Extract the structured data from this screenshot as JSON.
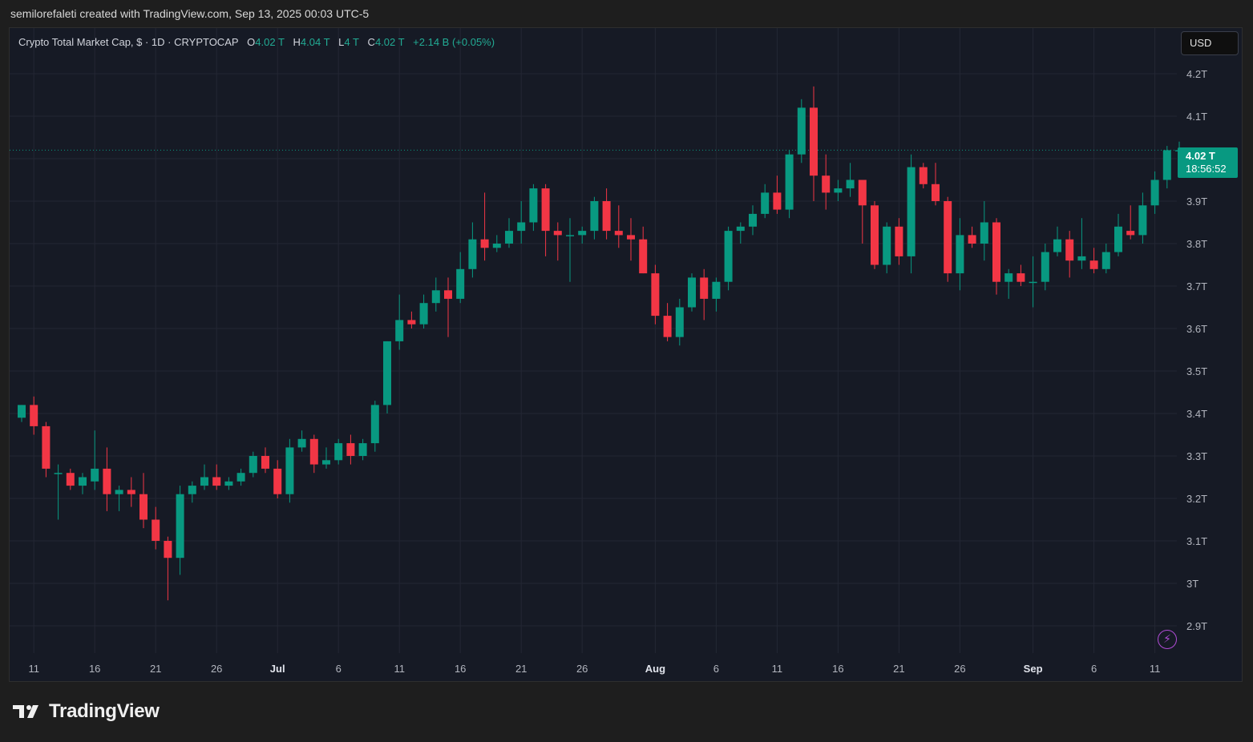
{
  "header": {
    "text": "semilorefaleti created with TradingView.com, Sep 13, 2025 00:03 UTC-5"
  },
  "legend": {
    "symbol": "Crypto Total Market Cap, $ · 1D · CRYPTOCAP",
    "o_label": "O",
    "o_value": "4.02 T",
    "h_label": "H",
    "h_value": "4.04 T",
    "l_label": "L",
    "l_value": "4 T",
    "c_label": "C",
    "c_value": "4.02 T",
    "change": "+2.14 B (+0.05%)"
  },
  "currency_button": {
    "label": "USD"
  },
  "price_tag": {
    "price": "4.02 T",
    "countdown": "18:56:52"
  },
  "footer": {
    "brand": "TradingView"
  },
  "icons": {
    "replay": "lightning-icon",
    "logo": "tradingview-logo-icon"
  },
  "colors": {
    "up": "#089981",
    "down": "#f23645",
    "background": "#161a25",
    "grid": "#232734",
    "axis_text": "#b2b5be"
  },
  "chart_data": {
    "type": "candlestick",
    "unit": "T",
    "ylim": [
      2.85,
      4.23
    ],
    "y_ticks": [
      {
        "v": 2.9,
        "label": "2.9T"
      },
      {
        "v": 3.0,
        "label": "3T"
      },
      {
        "v": 3.1,
        "label": "3.1T"
      },
      {
        "v": 3.2,
        "label": "3.2T"
      },
      {
        "v": 3.3,
        "label": "3.3T"
      },
      {
        "v": 3.4,
        "label": "3.4T"
      },
      {
        "v": 3.5,
        "label": "3.5T"
      },
      {
        "v": 3.6,
        "label": "3.6T"
      },
      {
        "v": 3.7,
        "label": "3.7T"
      },
      {
        "v": 3.8,
        "label": "3.8T"
      },
      {
        "v": 3.9,
        "label": "3.9T"
      },
      {
        "v": 4.0,
        "label": ""
      },
      {
        "v": 4.1,
        "label": "4.1T"
      },
      {
        "v": 4.2,
        "label": "4.2T"
      }
    ],
    "x_ticks": [
      {
        "i": 1,
        "label": "11",
        "bold": false
      },
      {
        "i": 6,
        "label": "16",
        "bold": false
      },
      {
        "i": 11,
        "label": "21",
        "bold": false
      },
      {
        "i": 16,
        "label": "26",
        "bold": false
      },
      {
        "i": 21,
        "label": "Jul",
        "bold": true
      },
      {
        "i": 26,
        "label": "6",
        "bold": false
      },
      {
        "i": 31,
        "label": "11",
        "bold": false
      },
      {
        "i": 36,
        "label": "16",
        "bold": false
      },
      {
        "i": 41,
        "label": "21",
        "bold": false
      },
      {
        "i": 46,
        "label": "26",
        "bold": false
      },
      {
        "i": 52,
        "label": "Aug",
        "bold": true
      },
      {
        "i": 57,
        "label": "6",
        "bold": false
      },
      {
        "i": 62,
        "label": "11",
        "bold": false
      },
      {
        "i": 67,
        "label": "16",
        "bold": false
      },
      {
        "i": 72,
        "label": "21",
        "bold": false
      },
      {
        "i": 77,
        "label": "26",
        "bold": false
      },
      {
        "i": 83,
        "label": "Sep",
        "bold": true
      },
      {
        "i": 88,
        "label": "6",
        "bold": false
      },
      {
        "i": 93,
        "label": "11",
        "bold": false
      }
    ],
    "last_price": 4.02,
    "candles": [
      [
        3.39,
        3.42,
        3.38,
        3.42
      ],
      [
        3.42,
        3.44,
        3.35,
        3.37
      ],
      [
        3.37,
        3.38,
        3.25,
        3.27
      ],
      [
        3.26,
        3.28,
        3.15,
        3.26
      ],
      [
        3.26,
        3.27,
        3.22,
        3.23
      ],
      [
        3.23,
        3.26,
        3.21,
        3.25
      ],
      [
        3.24,
        3.36,
        3.22,
        3.27
      ],
      [
        3.27,
        3.32,
        3.17,
        3.21
      ],
      [
        3.21,
        3.23,
        3.17,
        3.22
      ],
      [
        3.22,
        3.25,
        3.18,
        3.21
      ],
      [
        3.21,
        3.26,
        3.13,
        3.15
      ],
      [
        3.15,
        3.18,
        3.08,
        3.1
      ],
      [
        3.1,
        3.11,
        2.96,
        3.06
      ],
      [
        3.06,
        3.23,
        3.02,
        3.21
      ],
      [
        3.21,
        3.24,
        3.19,
        3.23
      ],
      [
        3.23,
        3.28,
        3.22,
        3.25
      ],
      [
        3.25,
        3.28,
        3.22,
        3.23
      ],
      [
        3.23,
        3.25,
        3.22,
        3.24
      ],
      [
        3.24,
        3.27,
        3.23,
        3.26
      ],
      [
        3.26,
        3.31,
        3.25,
        3.3
      ],
      [
        3.3,
        3.32,
        3.26,
        3.27
      ],
      [
        3.27,
        3.29,
        3.2,
        3.21
      ],
      [
        3.21,
        3.34,
        3.19,
        3.32
      ],
      [
        3.32,
        3.36,
        3.31,
        3.34
      ],
      [
        3.34,
        3.35,
        3.26,
        3.28
      ],
      [
        3.28,
        3.32,
        3.27,
        3.29
      ],
      [
        3.29,
        3.34,
        3.28,
        3.33
      ],
      [
        3.33,
        3.35,
        3.28,
        3.3
      ],
      [
        3.3,
        3.34,
        3.29,
        3.33
      ],
      [
        3.33,
        3.43,
        3.31,
        3.42
      ],
      [
        3.42,
        3.57,
        3.4,
        3.57
      ],
      [
        3.57,
        3.68,
        3.55,
        3.62
      ],
      [
        3.62,
        3.64,
        3.6,
        3.61
      ],
      [
        3.61,
        3.68,
        3.6,
        3.66
      ],
      [
        3.66,
        3.72,
        3.64,
        3.69
      ],
      [
        3.69,
        3.72,
        3.58,
        3.67
      ],
      [
        3.67,
        3.78,
        3.66,
        3.74
      ],
      [
        3.74,
        3.85,
        3.72,
        3.81
      ],
      [
        3.81,
        3.92,
        3.76,
        3.79
      ],
      [
        3.79,
        3.82,
        3.78,
        3.8
      ],
      [
        3.8,
        3.86,
        3.79,
        3.83
      ],
      [
        3.83,
        3.9,
        3.8,
        3.85
      ],
      [
        3.85,
        3.94,
        3.83,
        3.93
      ],
      [
        3.93,
        3.94,
        3.77,
        3.83
      ],
      [
        3.83,
        3.85,
        3.76,
        3.82
      ],
      [
        3.82,
        3.86,
        3.71,
        3.82
      ],
      [
        3.82,
        3.84,
        3.8,
        3.83
      ],
      [
        3.83,
        3.91,
        3.81,
        3.9
      ],
      [
        3.9,
        3.93,
        3.81,
        3.83
      ],
      [
        3.83,
        3.89,
        3.79,
        3.82
      ],
      [
        3.82,
        3.86,
        3.76,
        3.81
      ],
      [
        3.81,
        3.84,
        3.73,
        3.73
      ],
      [
        3.73,
        3.75,
        3.61,
        3.63
      ],
      [
        3.63,
        3.66,
        3.57,
        3.58
      ],
      [
        3.58,
        3.67,
        3.56,
        3.65
      ],
      [
        3.65,
        3.73,
        3.64,
        3.72
      ],
      [
        3.72,
        3.74,
        3.62,
        3.67
      ],
      [
        3.67,
        3.72,
        3.64,
        3.71
      ],
      [
        3.71,
        3.84,
        3.69,
        3.83
      ],
      [
        3.83,
        3.85,
        3.8,
        3.84
      ],
      [
        3.84,
        3.89,
        3.82,
        3.87
      ],
      [
        3.87,
        3.94,
        3.86,
        3.92
      ],
      [
        3.92,
        3.96,
        3.87,
        3.88
      ],
      [
        3.88,
        4.02,
        3.86,
        4.01
      ],
      [
        4.01,
        4.14,
        3.99,
        4.12
      ],
      [
        4.12,
        4.17,
        3.9,
        3.96
      ],
      [
        3.96,
        4.01,
        3.88,
        3.92
      ],
      [
        3.92,
        3.95,
        3.9,
        3.93
      ],
      [
        3.93,
        3.99,
        3.91,
        3.95
      ],
      [
        3.95,
        3.95,
        3.8,
        3.89
      ],
      [
        3.89,
        3.9,
        3.74,
        3.75
      ],
      [
        3.75,
        3.85,
        3.73,
        3.84
      ],
      [
        3.84,
        3.86,
        3.75,
        3.77
      ],
      [
        3.77,
        4.01,
        3.73,
        3.98
      ],
      [
        3.98,
        3.99,
        3.93,
        3.94
      ],
      [
        3.94,
        3.99,
        3.89,
        3.9
      ],
      [
        3.9,
        3.91,
        3.71,
        3.73
      ],
      [
        3.73,
        3.86,
        3.69,
        3.82
      ],
      [
        3.82,
        3.84,
        3.79,
        3.8
      ],
      [
        3.8,
        3.9,
        3.76,
        3.85
      ],
      [
        3.85,
        3.86,
        3.68,
        3.71
      ],
      [
        3.71,
        3.74,
        3.67,
        3.73
      ],
      [
        3.73,
        3.75,
        3.7,
        3.71
      ],
      [
        3.71,
        3.77,
        3.65,
        3.71
      ],
      [
        3.71,
        3.8,
        3.69,
        3.78
      ],
      [
        3.78,
        3.84,
        3.77,
        3.81
      ],
      [
        3.81,
        3.83,
        3.72,
        3.76
      ],
      [
        3.76,
        3.86,
        3.74,
        3.77
      ],
      [
        3.76,
        3.79,
        3.73,
        3.74
      ],
      [
        3.74,
        3.8,
        3.73,
        3.78
      ],
      [
        3.78,
        3.87,
        3.77,
        3.84
      ],
      [
        3.83,
        3.89,
        3.81,
        3.82
      ],
      [
        3.82,
        3.92,
        3.8,
        3.89
      ],
      [
        3.89,
        3.97,
        3.87,
        3.95
      ],
      [
        3.95,
        4.03,
        3.93,
        4.02
      ],
      [
        4.02,
        4.04,
        4.0,
        4.02
      ]
    ]
  }
}
